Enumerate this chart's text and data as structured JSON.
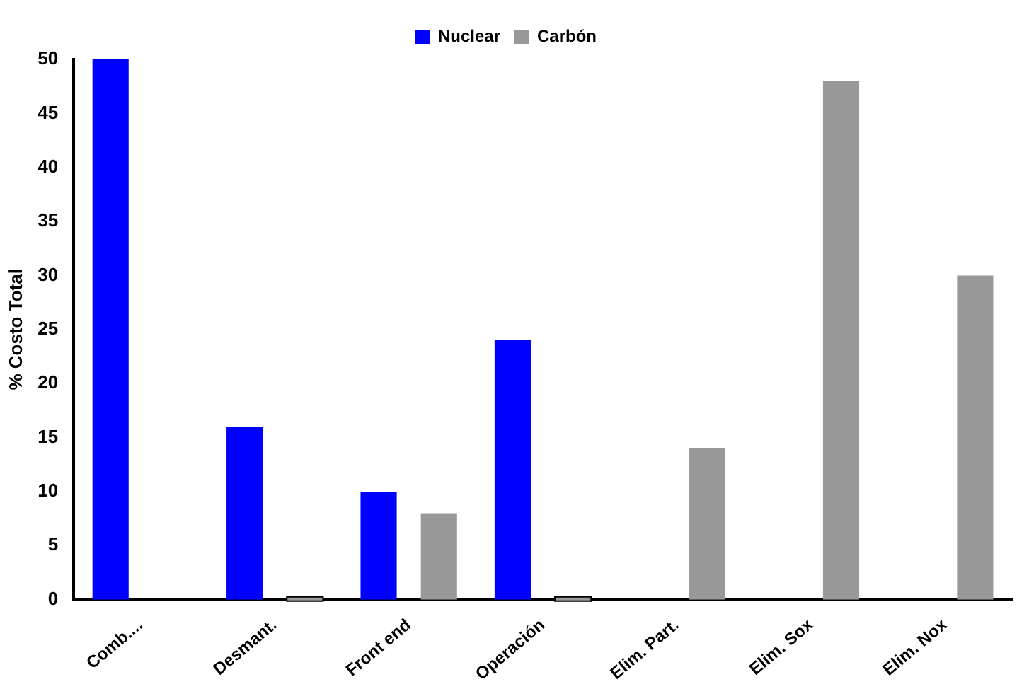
{
  "chart_data": {
    "type": "bar",
    "ylabel": "% Costo Total",
    "categories": [
      "Comb....",
      "Desmant.",
      "Front end",
      "Operación",
      "Elim. Part.",
      "Elim. Sox",
      "Elim. Nox"
    ],
    "series": [
      {
        "name": "Nuclear",
        "color": "#0000ff",
        "values": [
          50,
          16,
          10,
          24,
          null,
          null,
          null
        ]
      },
      {
        "name": "Carbón",
        "color": "#999999",
        "values": [
          null,
          0,
          8,
          0,
          14,
          48,
          30
        ]
      }
    ],
    "ylim": [
      0,
      50
    ],
    "yticks": [
      0,
      5,
      10,
      15,
      20,
      25,
      30,
      35,
      40,
      45,
      50
    ],
    "grid": false,
    "legend": "top"
  }
}
